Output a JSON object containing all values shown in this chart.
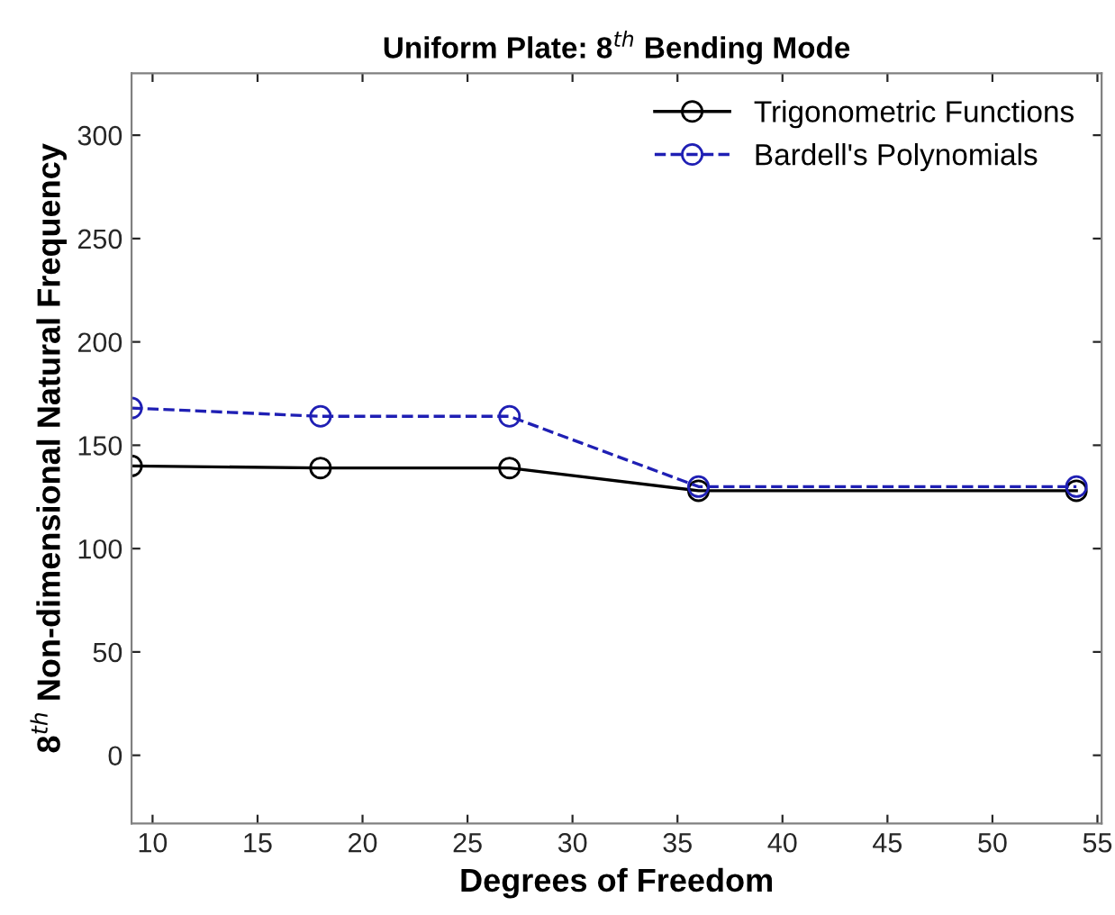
{
  "chart_data": {
    "type": "line",
    "title": "Uniform Plate: 8$^{th}$ Bending Mode",
    "xlabel": "Degrees of Freedom",
    "ylabel": "8$^{th}$ Non-dimensional Natural Frequency",
    "x": [
      9,
      18,
      27,
      36,
      54
    ],
    "series": [
      {
        "name": "Trigonometric Functions",
        "color": "#000000",
        "values": [
          140,
          139,
          139,
          128,
          128
        ],
        "line_style": "solid"
      },
      {
        "name": "Bardell's Polynomials",
        "color": "#1f1fb4",
        "values": [
          168,
          164,
          164,
          130,
          130
        ],
        "line_style": "dashed"
      }
    ],
    "marker": "circle",
    "xlim": [
      9,
      55.2
    ],
    "ylim": [
      -33,
      330
    ],
    "xticks": [
      10,
      15,
      20,
      25,
      30,
      35,
      40,
      45,
      50,
      55
    ],
    "yticks": [
      0,
      50,
      100,
      150,
      200,
      250,
      300
    ],
    "grid": false,
    "legend": "top right"
  }
}
